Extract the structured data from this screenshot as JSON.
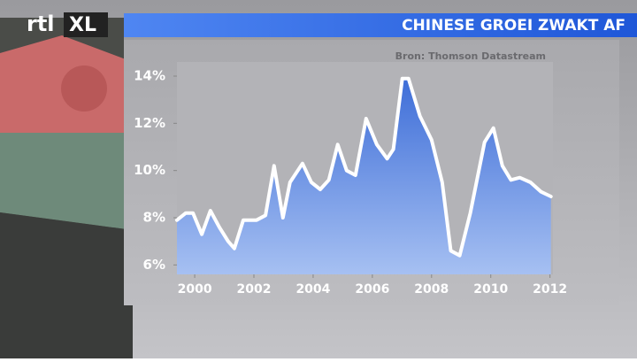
{
  "logo": {
    "part1": "rtl",
    "part2": "XL"
  },
  "chart_data": {
    "type": "area-line",
    "title": "CHINESE GROEI ZWAKT AF",
    "source": "Bron: Thomson Datastream",
    "x": [
      1999.4,
      1999.7,
      1999.94,
      2000.24,
      2000.53,
      2000.83,
      2001.13,
      2001.34,
      2001.64,
      2002.09,
      2002.39,
      2002.68,
      2002.98,
      2003.22,
      2003.64,
      2003.94,
      2004.24,
      2004.53,
      2004.83,
      2005.13,
      2005.43,
      2005.79,
      2006.15,
      2006.5,
      2006.71,
      2007.01,
      2007.22,
      2007.61,
      2008.0,
      2008.36,
      2008.65,
      2008.95,
      2009.31,
      2009.79,
      2010.09,
      2010.39,
      2010.68,
      2010.98,
      2011.34,
      2011.7,
      2012.03
    ],
    "values": [
      7.9,
      8.2,
      8.2,
      7.3,
      8.3,
      7.6,
      7.0,
      6.7,
      7.9,
      7.9,
      8.1,
      10.2,
      8.0,
      9.5,
      10.3,
      9.5,
      9.2,
      9.6,
      11.1,
      10.0,
      9.8,
      12.2,
      11.1,
      10.5,
      10.9,
      13.9,
      13.9,
      12.3,
      11.3,
      9.5,
      6.6,
      6.4,
      8.2,
      11.2,
      11.8,
      10.2,
      9.6,
      9.7,
      9.5,
      9.1,
      8.9
    ],
    "color": "#ffffff",
    "fill": "#4f7fe0",
    "xlim": [
      1999.4,
      2012.1
    ],
    "xticks": [
      2000,
      2002,
      2004,
      2006,
      2008,
      2010,
      2012
    ],
    "ylim": [
      5.6,
      14.6
    ],
    "yticks": [
      {
        "value": 6,
        "label": "6%"
      },
      {
        "value": 8,
        "label": "8%"
      },
      {
        "value": 10,
        "label": "10%"
      },
      {
        "value": 12,
        "label": "12%"
      },
      {
        "value": 14,
        "label": "14%"
      }
    ]
  }
}
